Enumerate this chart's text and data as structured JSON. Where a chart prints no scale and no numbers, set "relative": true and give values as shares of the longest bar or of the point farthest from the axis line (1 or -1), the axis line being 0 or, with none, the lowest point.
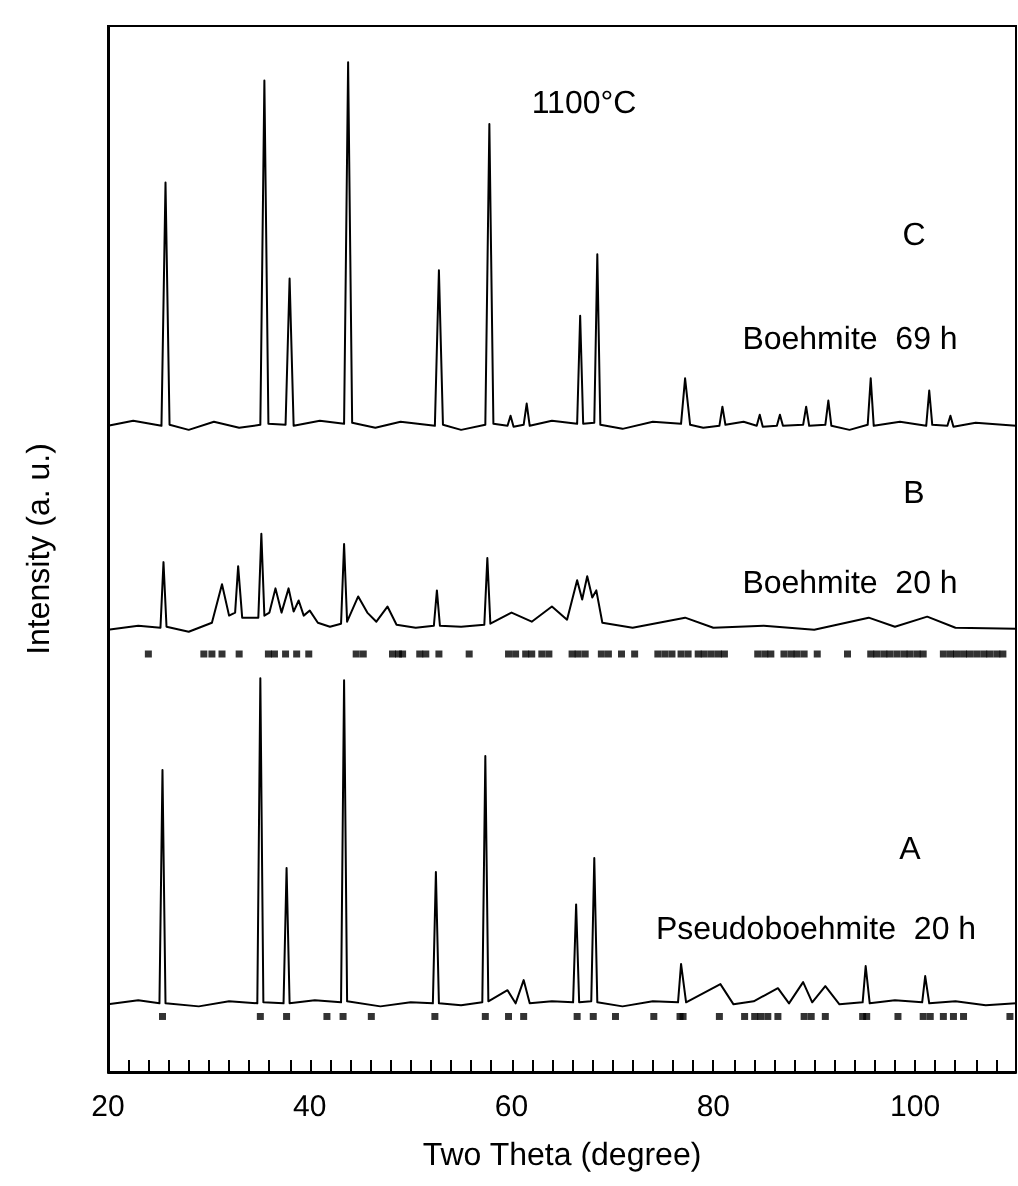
{
  "chart_data": {
    "type": "line",
    "relative": true,
    "xlabel": "Two Theta (degree)",
    "ylabel": "Intensity (a. u.)",
    "xlim": [
      20,
      110
    ],
    "xticks": [
      20,
      {
        "value": 22,
        "label": null
      },
      {
        "value": 24,
        "label": null
      },
      {
        "value": 26,
        "label": null
      },
      {
        "value": 28,
        "label": null
      },
      {
        "value": 30,
        "label": null
      },
      {
        "value": 32,
        "label": null
      },
      {
        "value": 34,
        "label": null
      },
      {
        "value": 36,
        "label": null
      },
      {
        "value": 38,
        "label": null
      },
      40,
      {
        "value": 42,
        "label": null
      },
      {
        "value": 44,
        "label": null
      },
      {
        "value": 46,
        "label": null
      },
      {
        "value": 48,
        "label": null
      },
      {
        "value": 50,
        "label": null
      },
      {
        "value": 52,
        "label": null
      },
      {
        "value": 54,
        "label": null
      },
      {
        "value": 56,
        "label": null
      },
      {
        "value": 58,
        "label": null
      },
      60,
      {
        "value": 62,
        "label": null
      },
      {
        "value": 64,
        "label": null
      },
      {
        "value": 66,
        "label": null
      },
      {
        "value": 68,
        "label": null
      },
      {
        "value": 70,
        "label": null
      },
      {
        "value": 72,
        "label": null
      },
      {
        "value": 74,
        "label": null
      },
      {
        "value": 76,
        "label": null
      },
      {
        "value": 78,
        "label": null
      },
      80,
      {
        "value": 82,
        "label": null
      },
      {
        "value": 84,
        "label": null
      },
      {
        "value": 86,
        "label": null
      },
      {
        "value": 88,
        "label": null
      },
      {
        "value": 90,
        "label": null
      },
      {
        "value": 92,
        "label": null
      },
      {
        "value": 94,
        "label": null
      },
      {
        "value": 96,
        "label": null
      },
      {
        "value": 98,
        "label": null
      },
      100,
      {
        "value": 102,
        "label": null
      },
      {
        "value": 104,
        "label": null
      },
      {
        "value": 106,
        "label": null
      },
      {
        "value": 108,
        "label": null
      }
    ],
    "tick_labels": "x",
    "grid": false,
    "marker": "none",
    "line_style": "solid",
    "annotations": [
      "1100°C",
      "C",
      "Boehmite  69 h",
      "B",
      "Boehmite  20 h",
      "A",
      "Pseudoboehmite  20 h"
    ],
    "series": [
      {
        "color": "#000000",
        "x": [
          20,
          22.5,
          25.3,
          25.7,
          26.1,
          28,
          30.5,
          33,
          35.1,
          35.5,
          35.9,
          37.6,
          38.0,
          38.4,
          41,
          43.4,
          43.8,
          44.2,
          46.5,
          49,
          52.4,
          52.8,
          53.2,
          55,
          57.4,
          57.8,
          58.2,
          59.6,
          59.9,
          60.2,
          61.2,
          61.5,
          61.8,
          64,
          66.5,
          66.8,
          67.1,
          68.2,
          68.5,
          68.8,
          71,
          74,
          76.8,
          77.2,
          77.7,
          79,
          80.6,
          80.9,
          81.2,
          83,
          84.3,
          84.6,
          84.9,
          86.3,
          86.6,
          86.9,
          88.9,
          89.2,
          89.5,
          91.1,
          91.4,
          91.7,
          93.5,
          95.3,
          95.6,
          95.9,
          98.5,
          101.1,
          101.4,
          101.7,
          103.2,
          103.5,
          103.8,
          106,
          110
        ],
        "values": [
          0.64,
          0.645,
          0.64,
          0.881,
          0.641,
          0.636,
          0.644,
          0.638,
          0.641,
          0.982,
          0.642,
          0.641,
          0.786,
          0.64,
          0.645,
          0.642,
          1.0,
          0.643,
          0.638,
          0.644,
          0.64,
          0.794,
          0.641,
          0.636,
          0.641,
          0.939,
          0.642,
          0.64,
          0.65,
          0.639,
          0.641,
          0.662,
          0.64,
          0.645,
          0.642,
          0.749,
          0.642,
          0.643,
          0.81,
          0.641,
          0.637,
          0.644,
          0.642,
          0.687,
          0.641,
          0.638,
          0.64,
          0.659,
          0.641,
          0.644,
          0.64,
          0.651,
          0.639,
          0.64,
          0.651,
          0.64,
          0.641,
          0.659,
          0.64,
          0.641,
          0.665,
          0.64,
          0.636,
          0.641,
          0.687,
          0.64,
          0.644,
          0.64,
          0.675,
          0.641,
          0.64,
          0.65,
          0.639,
          0.643,
          0.64
        ]
      },
      {
        "color": "#000000",
        "x": [
          20,
          23,
          25.2,
          25.5,
          25.8,
          28,
          30.3,
          31.3,
          32.0,
          32.6,
          32.9,
          33.3,
          34.9,
          35.2,
          35.5,
          36.0,
          36.6,
          37.2,
          37.9,
          38.4,
          38.9,
          39.4,
          40.0,
          40.8,
          42,
          43.1,
          43.4,
          43.7,
          44.8,
          45.7,
          46.6,
          47.7,
          48.6,
          50.5,
          52.3,
          52.6,
          52.9,
          55,
          57.3,
          57.6,
          57.9,
          60.0,
          62,
          64.0,
          65.5,
          66.5,
          67.0,
          67.5,
          68.0,
          68.4,
          69.0,
          72,
          77.2,
          80,
          85,
          90,
          95.4,
          98,
          101.2,
          104,
          110
        ],
        "values": [
          0.438,
          0.442,
          0.44,
          0.505,
          0.441,
          0.436,
          0.445,
          0.483,
          0.452,
          0.455,
          0.501,
          0.45,
          0.45,
          0.533,
          0.452,
          0.455,
          0.479,
          0.455,
          0.479,
          0.456,
          0.467,
          0.452,
          0.457,
          0.445,
          0.441,
          0.444,
          0.523,
          0.446,
          0.471,
          0.455,
          0.446,
          0.461,
          0.443,
          0.44,
          0.442,
          0.477,
          0.442,
          0.441,
          0.443,
          0.509,
          0.444,
          0.455,
          0.446,
          0.461,
          0.448,
          0.487,
          0.468,
          0.491,
          0.47,
          0.477,
          0.445,
          0.44,
          0.45,
          0.44,
          0.442,
          0.438,
          0.45,
          0.441,
          0.451,
          0.44,
          0.439
        ]
      },
      {
        "color": "#000000",
        "x": [
          20,
          23,
          25.1,
          25.4,
          25.7,
          29,
          32,
          34.8,
          35.1,
          35.4,
          37.4,
          37.7,
          38.0,
          40.5,
          43.1,
          43.4,
          43.7,
          47,
          50,
          52.2,
          52.5,
          52.8,
          55,
          57.1,
          57.4,
          57.7,
          59.6,
          60.4,
          61.2,
          61.8,
          64,
          66.1,
          66.4,
          66.7,
          67.9,
          68.2,
          68.5,
          71,
          74,
          76.5,
          76.8,
          77.3,
          80.7,
          82,
          84,
          86.4,
          87.5,
          88.9,
          89.8,
          91.1,
          92.5,
          94.8,
          95.1,
          95.5,
          98,
          100.7,
          101.0,
          101.4,
          104,
          107,
          110
        ],
        "values": [
          0.067,
          0.071,
          0.068,
          0.299,
          0.068,
          0.065,
          0.07,
          0.068,
          0.39,
          0.069,
          0.068,
          0.202,
          0.068,
          0.071,
          0.069,
          0.388,
          0.07,
          0.065,
          0.069,
          0.068,
          0.198,
          0.068,
          0.066,
          0.069,
          0.313,
          0.07,
          0.081,
          0.068,
          0.091,
          0.068,
          0.07,
          0.069,
          0.166,
          0.069,
          0.07,
          0.212,
          0.069,
          0.065,
          0.07,
          0.069,
          0.107,
          0.069,
          0.087,
          0.067,
          0.07,
          0.083,
          0.068,
          0.089,
          0.069,
          0.085,
          0.067,
          0.069,
          0.105,
          0.068,
          0.071,
          0.069,
          0.095,
          0.068,
          0.07,
          0.066,
          0.068
        ]
      },
      {
        "type": "scatter",
        "marker": "square",
        "color": "#000000",
        "x": [
          24.0,
          29.5,
          30.3,
          31.3,
          33.0,
          35.9,
          36.5,
          37.6,
          38.7,
          39.9,
          44.6,
          45.3,
          48.2,
          48.8,
          49.2,
          50.9,
          51.5,
          52.8,
          55.8,
          59.7,
          60.4,
          61.4,
          62.0,
          63.0,
          63.7,
          66.0,
          66.6,
          67.3,
          68.9,
          69.6,
          70.9,
          72.2,
          74.5,
          75.2,
          75.9,
          76.8,
          77.5,
          78.5,
          79.1,
          79.8,
          80.5,
          81.1,
          84.4,
          85.1,
          85.7,
          87.0,
          87.7,
          88.3,
          89.0,
          90.3,
          93.3,
          95.6,
          96.2,
          96.9,
          97.5,
          98.2,
          98.9,
          99.5,
          100.2,
          100.8,
          102.8,
          103.5,
          104.1,
          104.8,
          105.4,
          106.1,
          106.8,
          107.4,
          108.1,
          108.7
        ],
        "values": [
          0.414,
          0.414,
          0.414,
          0.414,
          0.414,
          0.414,
          0.414,
          0.414,
          0.414,
          0.414,
          0.414,
          0.414,
          0.414,
          0.414,
          0.414,
          0.414,
          0.414,
          0.414,
          0.414,
          0.414,
          0.414,
          0.414,
          0.414,
          0.414,
          0.414,
          0.414,
          0.414,
          0.414,
          0.414,
          0.414,
          0.414,
          0.414,
          0.414,
          0.414,
          0.414,
          0.414,
          0.414,
          0.414,
          0.414,
          0.414,
          0.414,
          0.414,
          0.414,
          0.414,
          0.414,
          0.414,
          0.414,
          0.414,
          0.414,
          0.414,
          0.414,
          0.414,
          0.414,
          0.414,
          0.414,
          0.414,
          0.414,
          0.414,
          0.414,
          0.414,
          0.414,
          0.414,
          0.414,
          0.414,
          0.414,
          0.414,
          0.414,
          0.414,
          0.414,
          0.414
        ]
      },
      {
        "type": "scatter",
        "marker": "square",
        "color": "#000000",
        "x": [
          25.4,
          35.1,
          37.7,
          41.7,
          43.3,
          46.1,
          52.4,
          57.4,
          59.7,
          61.2,
          66.5,
          68.1,
          70.3,
          74.1,
          76.7,
          77.0,
          80.6,
          83.1,
          84.1,
          84.7,
          85.4,
          86.4,
          89.0,
          89.7,
          91.1,
          94.8,
          95.2,
          98.3,
          100.8,
          101.5,
          102.8,
          103.8,
          104.8,
          109.4
        ],
        "values": [
          0.055,
          0.055,
          0.055,
          0.055,
          0.055,
          0.055,
          0.055,
          0.055,
          0.055,
          0.055,
          0.055,
          0.055,
          0.055,
          0.055,
          0.055,
          0.055,
          0.055,
          0.055,
          0.055,
          0.055,
          0.055,
          0.055,
          0.055,
          0.055,
          0.055,
          0.055,
          0.055,
          0.055,
          0.055,
          0.055,
          0.055,
          0.055,
          0.055,
          0.055
        ]
      }
    ]
  }
}
